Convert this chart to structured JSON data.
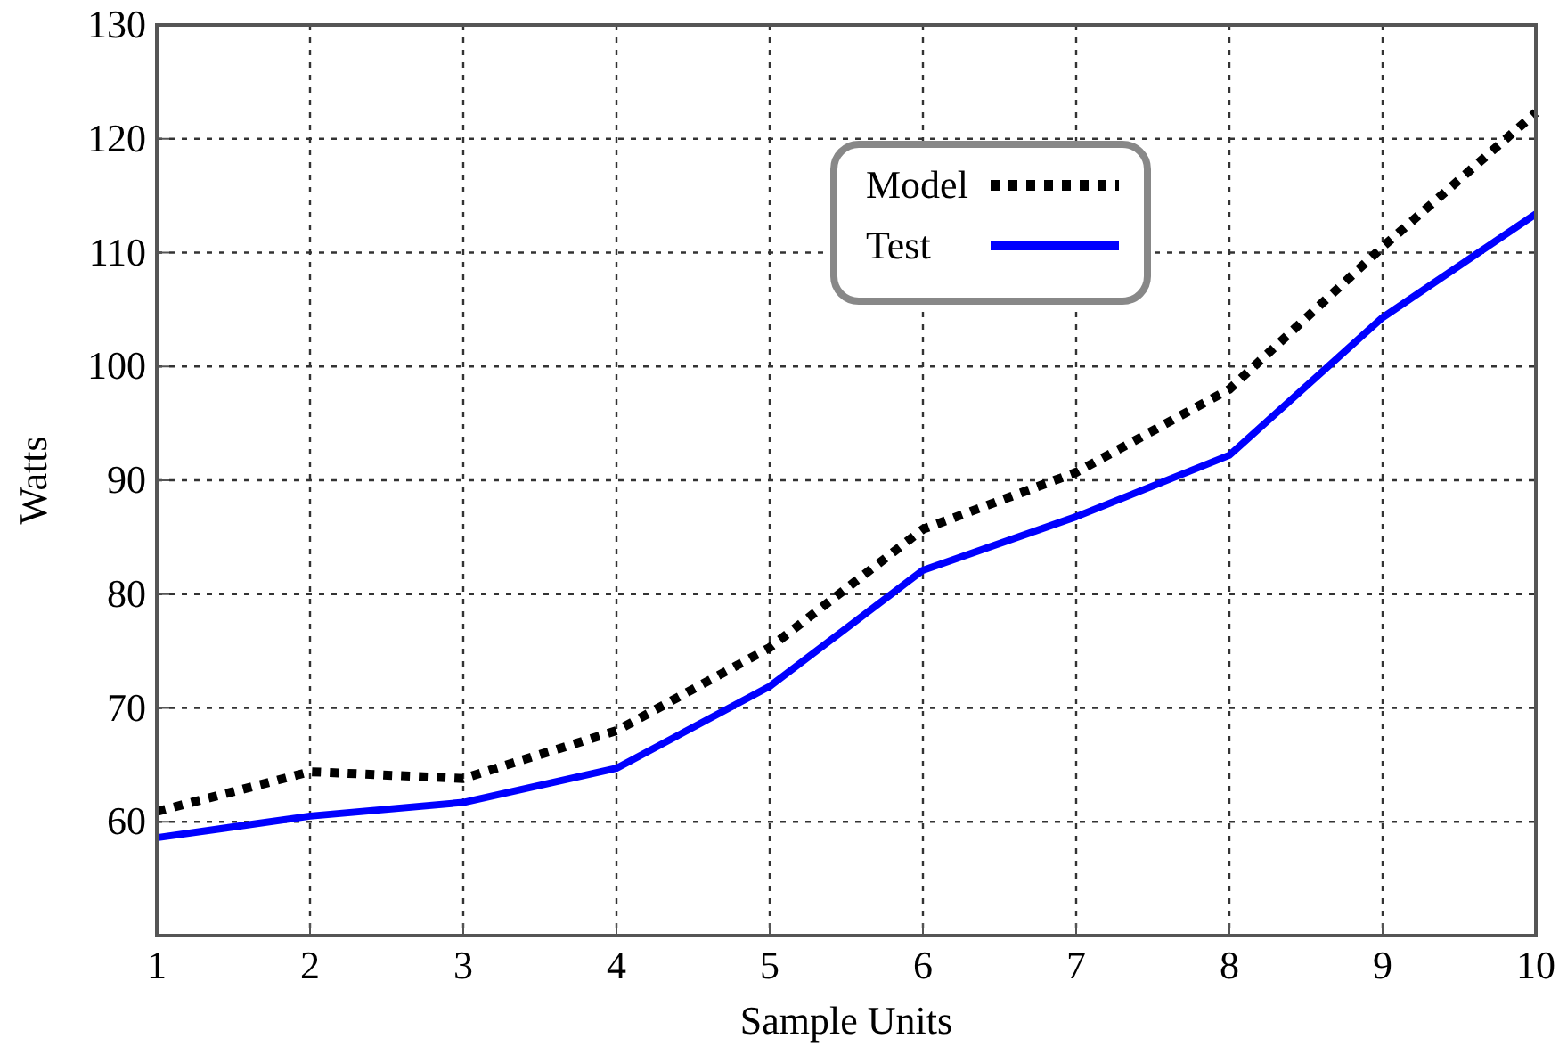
{
  "chart_data": {
    "type": "line",
    "xlabel": "Sample Units",
    "ylabel": "Watts",
    "x": [
      1,
      2,
      3,
      4,
      5,
      6,
      7,
      8,
      9,
      10
    ],
    "series": [
      {
        "name": "Model",
        "color": "#000000",
        "line_style": "dotted",
        "values": [
          60.9,
          64.4,
          63.8,
          68,
          75.3,
          85.7,
          90.7,
          98,
          110.5,
          122.3
        ]
      },
      {
        "name": "Test",
        "color": "#0000ff",
        "line_style": "solid",
        "values": [
          58.6,
          60.5,
          61.7,
          64.7,
          71.9,
          82.1,
          86.8,
          92.2,
          104.3,
          113.4
        ]
      }
    ],
    "xlim": [
      1,
      10
    ],
    "xticks": [
      1,
      2,
      3,
      4,
      5,
      6,
      7,
      8,
      9,
      10
    ],
    "ylim": [
      50,
      130
    ],
    "yticks": [
      60,
      70,
      80,
      90,
      100,
      110,
      120,
      130
    ],
    "grid": true,
    "legend": "top"
  }
}
